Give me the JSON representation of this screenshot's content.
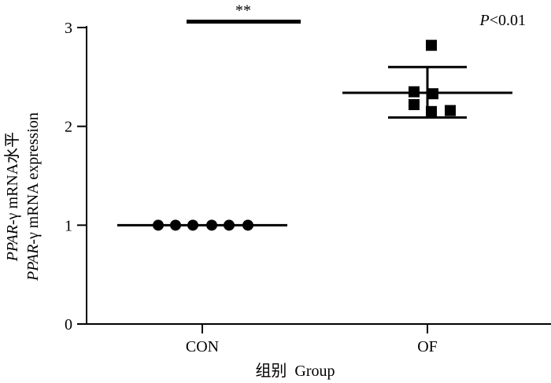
{
  "chart_data": {
    "type": "scatter",
    "categories": [
      "CON",
      "OF"
    ],
    "xlabel": "组别  Group",
    "ylabel_line1_italic": "PPAR",
    "ylabel_line1_rest": "-γ mRNA水平",
    "ylabel_line2_italic": "PPAR",
    "ylabel_line2_rest": "-γ mRNA expression",
    "ylim": [
      0,
      3
    ],
    "yticks": [
      "0",
      "1",
      "2",
      "3"
    ],
    "series": [
      {
        "category": "CON",
        "marker": "circle",
        "values": [
          1.0,
          1.0,
          1.0,
          1.0,
          1.0,
          1.0
        ],
        "mean": 1.0,
        "error_upper": 1.0,
        "error_lower": 1.0
      },
      {
        "category": "OF",
        "marker": "square",
        "values": [
          2.82,
          2.35,
          2.33,
          2.22,
          2.15,
          2.16
        ],
        "mean": 2.34,
        "error_upper": 2.6,
        "error_lower": 2.09
      }
    ],
    "significance_marker": "**",
    "significance_bar_y": 3.06,
    "p_value_label_italic": "P",
    "p_value_label_rest": "<0.01",
    "grid": false,
    "legend": "none"
  }
}
